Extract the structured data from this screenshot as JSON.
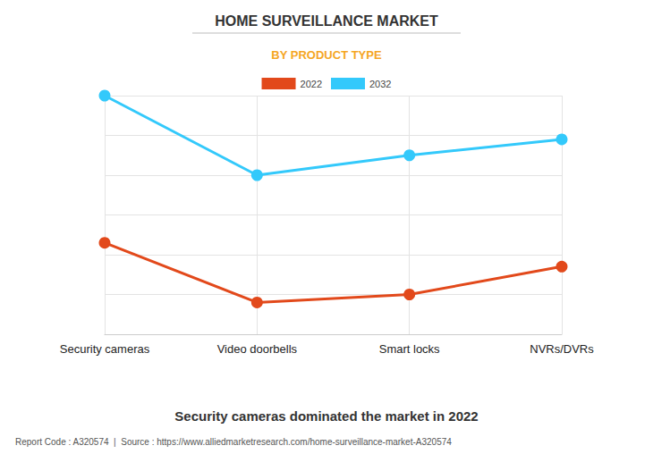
{
  "chart_data": {
    "type": "line",
    "title": "HOME SURVEILLANCE MARKET",
    "subtitle": "BY PRODUCT TYPE",
    "caption": "Security cameras dominated the market in 2022",
    "source": "Report Code : A320574  |  Source : https://www.alliedmarketresearch.com/home-surveillance-market-A320574",
    "categories": [
      "Security cameras",
      "Video doorbells",
      "Smart locks",
      "NVRs/DVRs"
    ],
    "series": [
      {
        "name": "2022",
        "color": "#e2491b",
        "values": [
          2.3,
          0.8,
          1.0,
          1.7
        ],
        "marker": "circle"
      },
      {
        "name": "2032",
        "color": "#33c9fb",
        "values": [
          6.0,
          4.0,
          4.5,
          4.9
        ],
        "marker": "circle"
      }
    ],
    "ylim": [
      0,
      6
    ],
    "yticks": [
      0,
      1,
      2,
      3,
      4,
      5,
      6
    ],
    "grid": true,
    "legend": "top",
    "tick_labels": "x",
    "data_labels": false
  }
}
